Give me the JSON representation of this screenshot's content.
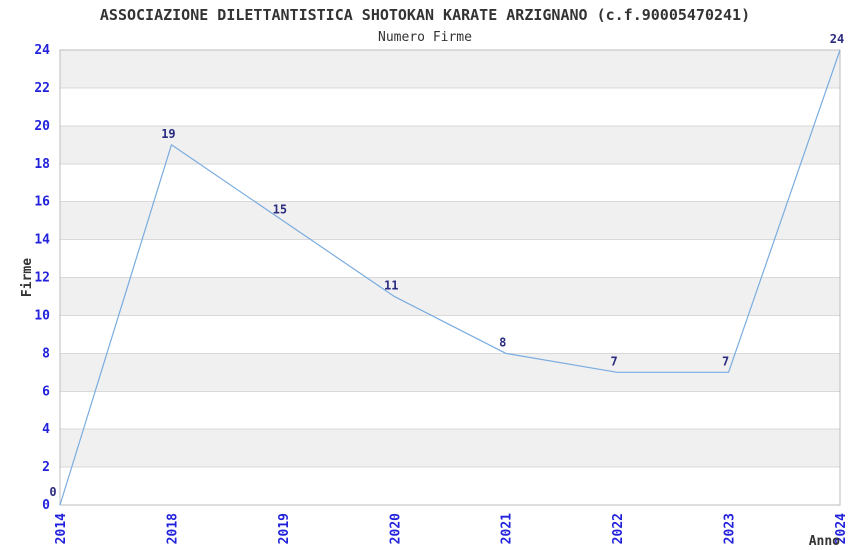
{
  "chart_data": {
    "type": "line",
    "title": "ASSOCIAZIONE DILETTANTISTICA SHOTOKAN KARATE ARZIGNANO (c.f.90005470241)",
    "subtitle": "Numero Firme",
    "categories": [
      "2014",
      "2018",
      "2019",
      "2020",
      "2021",
      "2022",
      "2023",
      "2024"
    ],
    "values": [
      0,
      19,
      15,
      11,
      8,
      7,
      7,
      24
    ],
    "value_labels": [
      "0",
      "19",
      "15",
      "11",
      "8",
      "7",
      "7",
      "24"
    ],
    "xlabel": "Anno",
    "ylabel": "Firme",
    "ylim": [
      0,
      24
    ],
    "y_tick_step": 2,
    "y_tick_labels": [
      "0",
      "2",
      "4",
      "6",
      "8",
      "10",
      "12",
      "14",
      "16",
      "18",
      "20",
      "22",
      "24"
    ],
    "grid": "alternating-horizontal-bands-every-2-units",
    "legend": "none",
    "colors": {
      "line": "#7aace0",
      "tick_label": "#2222dd",
      "value_label": "#2b2b80",
      "band_fill": "#f0f0f0",
      "band_border": "#d9d9d9",
      "spine": "#bdbdbd",
      "text": "#333333",
      "background": "#ffffff"
    }
  }
}
